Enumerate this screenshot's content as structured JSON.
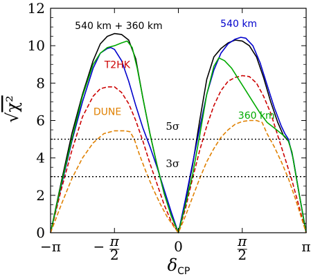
{
  "chart_data": {
    "type": "line",
    "xlabel": "δ",
    "xlabel_subscript": "CP",
    "ylabel": "χ²",
    "ylabel_radical": "√",
    "xlim": [
      -180,
      180
    ],
    "ylim": [
      0,
      12
    ],
    "x_ticks": [
      {
        "value": -180,
        "label": "−π"
      },
      {
        "value": -90,
        "label": "π/2",
        "numerator": "π",
        "denominator": "2",
        "sign": "−"
      },
      {
        "value": 0,
        "label": "0"
      },
      {
        "value": 90,
        "label": "π/2",
        "numerator": "π",
        "denominator": "2",
        "sign": ""
      },
      {
        "value": 180,
        "label": "π"
      }
    ],
    "y_ticks": [
      0,
      2,
      4,
      6,
      8,
      10,
      12
    ],
    "series": [
      {
        "name": "540 km + 360 km",
        "color": "#000000",
        "dashed": false,
        "label_at": [
          -84,
          10.9
        ],
        "points": [
          [
            -180,
            0
          ],
          [
            -165,
            2.7
          ],
          [
            -150,
            5.3
          ],
          [
            -135,
            7.4
          ],
          [
            -120,
            9.2
          ],
          [
            -110,
            10.1
          ],
          [
            -100,
            10.5
          ],
          [
            -90,
            10.65
          ],
          [
            -80,
            10.6
          ],
          [
            -70,
            10.3
          ],
          [
            -60,
            9.3
          ],
          [
            -50,
            7.2
          ],
          [
            -40,
            5.3
          ],
          [
            -30,
            3.6
          ],
          [
            -20,
            2.1
          ],
          [
            -10,
            0.9
          ],
          [
            0,
            0
          ],
          [
            10,
            1.7
          ],
          [
            20,
            3.6
          ],
          [
            30,
            6.0
          ],
          [
            40,
            8.2
          ],
          [
            50,
            9.4
          ],
          [
            60,
            9.85
          ],
          [
            70,
            10.15
          ],
          [
            80,
            10.3
          ],
          [
            90,
            10.25
          ],
          [
            100,
            10.0
          ],
          [
            110,
            9.4
          ],
          [
            120,
            8.3
          ],
          [
            130,
            7.0
          ],
          [
            140,
            5.9
          ],
          [
            148,
            5.2
          ],
          [
            155,
            4.9
          ],
          [
            160,
            4.3
          ],
          [
            170,
            2.1
          ],
          [
            180,
            0
          ]
        ]
      },
      {
        "name": "540 km",
        "color": "#0000cc",
        "dashed": false,
        "label_at": [
          85,
          11.0
        ],
        "points": [
          [
            -180,
            0
          ],
          [
            -165,
            2.5
          ],
          [
            -150,
            4.9
          ],
          [
            -135,
            7.0
          ],
          [
            -120,
            8.8
          ],
          [
            -110,
            9.6
          ],
          [
            -100,
            9.85
          ],
          [
            -95,
            9.9
          ],
          [
            -90,
            9.8
          ],
          [
            -80,
            9.2
          ],
          [
            -70,
            8.1
          ],
          [
            -60,
            6.8
          ],
          [
            -50,
            5.6
          ],
          [
            -40,
            4.6
          ],
          [
            -30,
            3.5
          ],
          [
            -20,
            2.3
          ],
          [
            -10,
            1.1
          ],
          [
            0,
            0
          ],
          [
            10,
            1.8
          ],
          [
            20,
            3.7
          ],
          [
            30,
            5.6
          ],
          [
            40,
            7.4
          ],
          [
            50,
            8.7
          ],
          [
            60,
            9.6
          ],
          [
            70,
            10.1
          ],
          [
            80,
            10.35
          ],
          [
            88,
            10.45
          ],
          [
            95,
            10.4
          ],
          [
            105,
            10.0
          ],
          [
            115,
            9.1
          ],
          [
            125,
            7.9
          ],
          [
            135,
            6.7
          ],
          [
            145,
            5.7
          ],
          [
            150,
            5.3
          ],
          [
            155,
            5.0
          ],
          [
            162,
            3.9
          ],
          [
            170,
            2.1
          ],
          [
            180,
            0
          ]
        ]
      },
      {
        "name": "T2HK",
        "color": "#cc0000",
        "dashed": true,
        "label_at": [
          -86,
          8.8
        ],
        "points": [
          [
            -180,
            0
          ],
          [
            -165,
            2.3
          ],
          [
            -150,
            4.4
          ],
          [
            -135,
            6.2
          ],
          [
            -120,
            7.3
          ],
          [
            -110,
            7.7
          ],
          [
            -100,
            7.8
          ],
          [
            -90,
            7.8
          ],
          [
            -80,
            7.5
          ],
          [
            -70,
            6.9
          ],
          [
            -60,
            6.0
          ],
          [
            -50,
            4.9
          ],
          [
            -40,
            3.7
          ],
          [
            -30,
            2.6
          ],
          [
            -20,
            1.5
          ],
          [
            -10,
            0.6
          ],
          [
            0,
            0
          ],
          [
            10,
            1.3
          ],
          [
            20,
            2.9
          ],
          [
            30,
            4.4
          ],
          [
            40,
            5.7
          ],
          [
            50,
            6.8
          ],
          [
            60,
            7.6
          ],
          [
            70,
            8.1
          ],
          [
            80,
            8.3
          ],
          [
            90,
            8.4
          ],
          [
            100,
            8.35
          ],
          [
            110,
            8.0
          ],
          [
            120,
            7.3
          ],
          [
            130,
            6.4
          ],
          [
            140,
            5.2
          ],
          [
            150,
            4.0
          ],
          [
            160,
            2.8
          ],
          [
            170,
            1.4
          ],
          [
            180,
            0
          ]
        ]
      },
      {
        "name": "360 km",
        "color": "#00aa00",
        "dashed": false,
        "label_at": [
          110,
          6.1
        ],
        "points": [
          [
            -180,
            0
          ],
          [
            -165,
            2.6
          ],
          [
            -150,
            5.0
          ],
          [
            -135,
            7.3
          ],
          [
            -120,
            9.0
          ],
          [
            -110,
            9.6
          ],
          [
            -100,
            9.9
          ],
          [
            -90,
            10.0
          ],
          [
            -80,
            10.15
          ],
          [
            -72,
            10.25
          ],
          [
            -65,
            9.9
          ],
          [
            -58,
            8.8
          ],
          [
            -50,
            7.2
          ],
          [
            -40,
            5.3
          ],
          [
            -30,
            3.6
          ],
          [
            -20,
            2.1
          ],
          [
            -10,
            0.9
          ],
          [
            0,
            0
          ],
          [
            10,
            1.5
          ],
          [
            20,
            3.1
          ],
          [
            30,
            5.2
          ],
          [
            40,
            7.4
          ],
          [
            50,
            8.9
          ],
          [
            57,
            9.35
          ],
          [
            65,
            9.2
          ],
          [
            75,
            8.8
          ],
          [
            85,
            8.2
          ],
          [
            95,
            7.6
          ],
          [
            105,
            7.0
          ],
          [
            115,
            6.4
          ],
          [
            125,
            5.9
          ],
          [
            135,
            5.6
          ],
          [
            145,
            5.3
          ],
          [
            150,
            5.15
          ],
          [
            155,
            4.9
          ],
          [
            160,
            4.3
          ],
          [
            170,
            2.1
          ],
          [
            180,
            0
          ]
        ]
      },
      {
        "name": "DUNE",
        "color": "#e08000",
        "dashed": true,
        "label_at": [
          -100,
          6.3
        ],
        "points": [
          [
            -180,
            0
          ],
          [
            -165,
            1.5
          ],
          [
            -150,
            2.9
          ],
          [
            -135,
            4.0
          ],
          [
            -120,
            4.8
          ],
          [
            -105,
            5.3
          ],
          [
            -90,
            5.45
          ],
          [
            -75,
            5.45
          ],
          [
            -68,
            5.4
          ],
          [
            -62,
            5.0
          ],
          [
            -55,
            4.2
          ],
          [
            -45,
            3.2
          ],
          [
            -35,
            2.3
          ],
          [
            -25,
            1.5
          ],
          [
            -15,
            0.8
          ],
          [
            -5,
            0.25
          ],
          [
            0,
            0
          ],
          [
            10,
            0.9
          ],
          [
            20,
            1.9
          ],
          [
            30,
            2.9
          ],
          [
            40,
            3.8
          ],
          [
            50,
            4.5
          ],
          [
            60,
            5.1
          ],
          [
            70,
            5.5
          ],
          [
            80,
            5.8
          ],
          [
            90,
            5.95
          ],
          [
            100,
            6.0
          ],
          [
            110,
            6.0
          ],
          [
            118,
            5.9
          ],
          [
            125,
            5.3
          ],
          [
            135,
            4.6
          ],
          [
            145,
            3.8
          ],
          [
            155,
            2.9
          ],
          [
            165,
            1.8
          ],
          [
            175,
            0.6
          ],
          [
            180,
            0
          ]
        ]
      }
    ],
    "reference_lines": [
      {
        "y": 5,
        "label": "5σ",
        "style": "dotted",
        "label_at": [
          -8,
          5.5
        ]
      },
      {
        "y": 3,
        "label": "3σ",
        "style": "dotted",
        "label_at": [
          -8,
          3.5
        ]
      }
    ]
  }
}
